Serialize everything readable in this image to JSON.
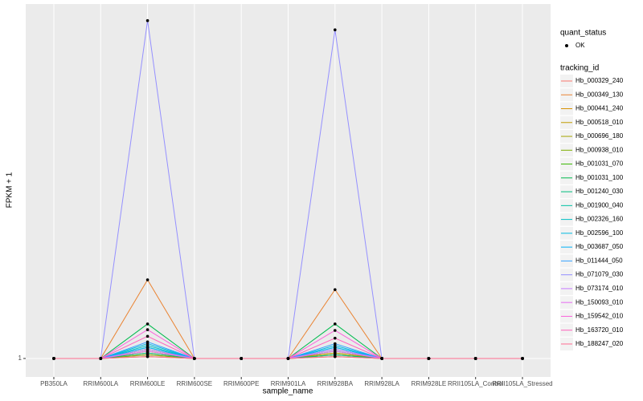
{
  "chart_data": {
    "type": "line",
    "x_label": "sample_name",
    "y_label": "FPKM + 1",
    "categories": [
      "PB350LA",
      "RRIM600LA",
      "RRIM600LE",
      "RRIM600SE",
      "RRIM600PE",
      "RRIM901LA",
      "RRIM928BA",
      "RRIM928LA",
      "RRIM928LE",
      "RRII105LA_Control",
      "RRII105LA_Stressed"
    ],
    "ylim": [
      0.9,
      2.92
    ],
    "yticks": [
      1
    ],
    "grid": true,
    "shape_legend": {
      "title": "quant_status",
      "labels": [
        "OK"
      ]
    },
    "color_legend_title": "tracking_id",
    "series": [
      {
        "name": "Hb_000329_240",
        "color": "#F8766D",
        "values": [
          1,
          1,
          1.02,
          1,
          1,
          1,
          1.02,
          1,
          1,
          1,
          1
        ]
      },
      {
        "name": "Hb_000349_130",
        "color": "#EA8331",
        "values": [
          1,
          1,
          1.426,
          1,
          1,
          1,
          1.373,
          1,
          1,
          1,
          1
        ]
      },
      {
        "name": "Hb_000441_240",
        "color": "#D89000",
        "values": [
          1,
          1,
          1.03,
          1,
          1,
          1,
          1.03,
          1,
          1,
          1,
          1
        ]
      },
      {
        "name": "Hb_000518_010",
        "color": "#C09B00",
        "values": [
          1,
          1,
          1.01,
          1,
          1,
          1,
          1.01,
          1,
          1,
          1,
          1
        ]
      },
      {
        "name": "Hb_000696_180",
        "color": "#A3A500",
        "values": [
          1,
          1,
          1.04,
          1,
          1,
          1,
          1.03,
          1,
          1,
          1,
          1
        ]
      },
      {
        "name": "Hb_000938_010",
        "color": "#7CAE00",
        "values": [
          1,
          1,
          1.02,
          1,
          1,
          1,
          1.02,
          1,
          1,
          1,
          1
        ]
      },
      {
        "name": "Hb_001031_070",
        "color": "#39B600",
        "values": [
          1,
          1,
          1.05,
          1,
          1,
          1,
          1.04,
          1,
          1,
          1,
          1
        ]
      },
      {
        "name": "Hb_001031_100",
        "color": "#00BB4E",
        "values": [
          1,
          1,
          1.187,
          1,
          1,
          1,
          1.187,
          1,
          1,
          1,
          1
        ]
      },
      {
        "name": "Hb_001240_030",
        "color": "#00BF7D",
        "values": [
          1,
          1,
          1.03,
          1,
          1,
          1,
          1.02,
          1,
          1,
          1,
          1
        ]
      },
      {
        "name": "Hb_001900_040",
        "color": "#00C1A3",
        "values": [
          1,
          1,
          1.06,
          1,
          1,
          1,
          1.05,
          1,
          1,
          1,
          1
        ]
      },
      {
        "name": "Hb_002326_160",
        "color": "#00BFC4",
        "values": [
          1,
          1,
          1.07,
          1,
          1,
          1,
          1.06,
          1,
          1,
          1,
          1
        ]
      },
      {
        "name": "Hb_002596_100",
        "color": "#00BAE0",
        "values": [
          1,
          1,
          1.08,
          1,
          1,
          1,
          1.07,
          1,
          1,
          1,
          1
        ]
      },
      {
        "name": "Hb_003687_050",
        "color": "#00B0F6",
        "values": [
          1,
          1,
          1.06,
          1,
          1,
          1,
          1.06,
          1,
          1,
          1,
          1
        ]
      },
      {
        "name": "Hb_011444_050",
        "color": "#35A2FF",
        "values": [
          1,
          1,
          1.09,
          1,
          1,
          1,
          1.08,
          1,
          1,
          1,
          1
        ]
      },
      {
        "name": "Hb_071079_030",
        "color": "#9590FF",
        "values": [
          1,
          1,
          2.83,
          1,
          1,
          1,
          2.78,
          1,
          1,
          1,
          1
        ]
      },
      {
        "name": "Hb_073174_010",
        "color": "#C77CFF",
        "values": [
          1,
          1,
          1.05,
          1,
          1,
          1,
          1.05,
          1,
          1,
          1,
          1
        ]
      },
      {
        "name": "Hb_150093_010",
        "color": "#E76BF3",
        "values": [
          1,
          1,
          1.04,
          1,
          1,
          1,
          1.04,
          1,
          1,
          1,
          1
        ]
      },
      {
        "name": "Hb_159542_010",
        "color": "#FA62DB",
        "values": [
          1,
          1,
          1.156,
          1,
          1,
          1,
          1.152,
          1,
          1,
          1,
          1
        ]
      },
      {
        "name": "Hb_163720_010",
        "color": "#FF62BC",
        "values": [
          1,
          1,
          1.12,
          1,
          1,
          1,
          1.11,
          1,
          1,
          1,
          1
        ]
      },
      {
        "name": "Hb_188247_020",
        "color": "#FF6C91",
        "values": [
          1,
          1,
          1.01,
          1,
          1,
          1,
          1.01,
          1,
          1,
          1,
          1
        ]
      }
    ]
  }
}
